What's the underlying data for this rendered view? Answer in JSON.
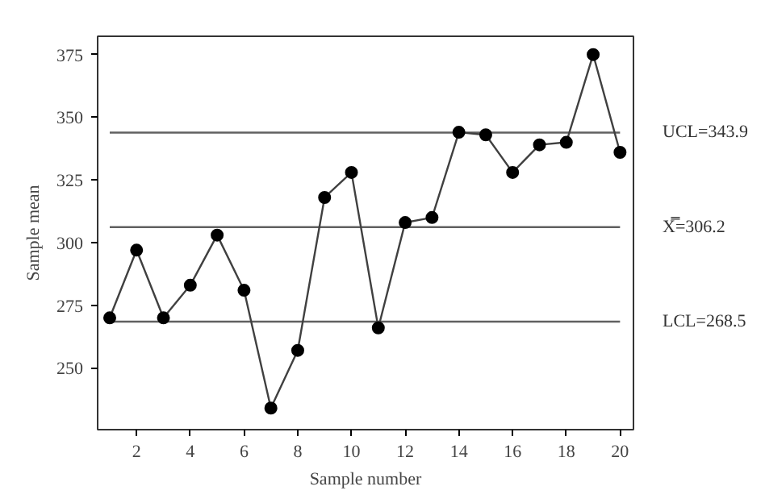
{
  "chart_data": {
    "type": "line",
    "xlabel": "Sample number",
    "ylabel": "Sample mean",
    "x": [
      1,
      2,
      3,
      4,
      5,
      6,
      7,
      8,
      9,
      10,
      11,
      12,
      13,
      14,
      15,
      16,
      17,
      18,
      19,
      20
    ],
    "series": [
      {
        "color": "#404040",
        "values": [
          270,
          297,
          270,
          283,
          303,
          281,
          234,
          257,
          318,
          328,
          266,
          308,
          310,
          344,
          343,
          328,
          339,
          340,
          375,
          336
        ]
      }
    ],
    "xlim": [
      0.55,
      20.5
    ],
    "xticks": [
      2,
      4,
      6,
      8,
      10,
      12,
      14,
      16,
      18,
      20
    ],
    "ylim": [
      225.4,
      382.3
    ],
    "yticks": [
      250,
      275,
      300,
      325,
      350,
      375
    ],
    "marker": "circle",
    "grid": false,
    "ref_lines": [
      {
        "axis": "y",
        "value": 343.9,
        "label": "UCL=343.9",
        "color": "#606060"
      },
      {
        "axis": "y",
        "value": 306.2,
        "label": "X̿=306.2",
        "color": "#606060"
      },
      {
        "axis": "y",
        "value": 268.5,
        "label": "LCL=268.5",
        "color": "#606060"
      }
    ]
  }
}
